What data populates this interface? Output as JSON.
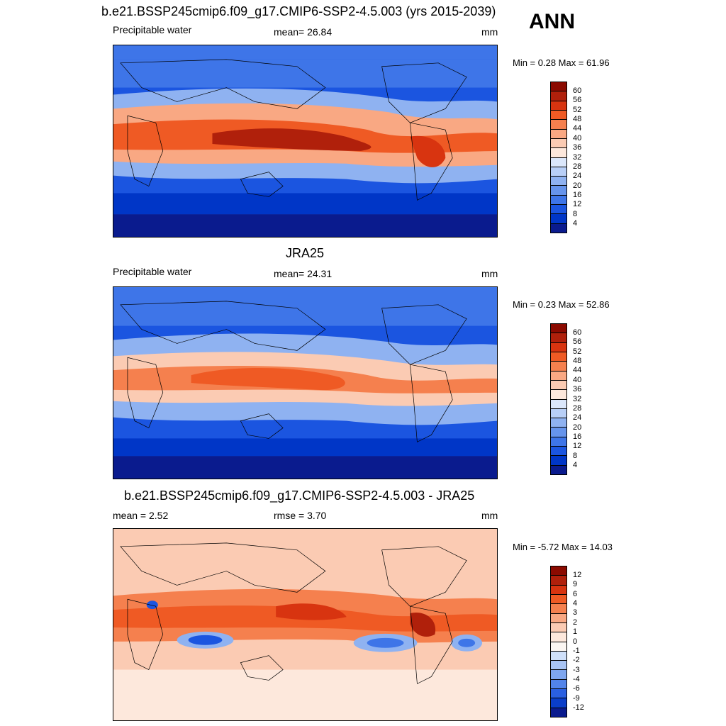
{
  "annual_label": "ANN",
  "panels": [
    {
      "title": "b.e21.BSSP245cmip6.f09_g17.CMIP6-SSP2-4.5.003 (yrs 2015-2039)",
      "variable": "Precipitable water",
      "stat": "mean=  26.84",
      "units": "mm",
      "minmax": "Min =   0.28 Max =  61.96",
      "ticks": [
        "60",
        "56",
        "52",
        "48",
        "44",
        "40",
        "36",
        "32",
        "28",
        "24",
        "20",
        "16",
        "12",
        "8",
        "4"
      ],
      "colors": [
        "#8b0a00",
        "#b0200b",
        "#d83410",
        "#ef5a24",
        "#f5804e",
        "#f9a883",
        "#fbcbb3",
        "#fde8dc",
        "#dbe7fb",
        "#b8cff7",
        "#8fb2f1",
        "#6694ec",
        "#3e75e8",
        "#1b55e0",
        "#0036c7",
        "#0a1b8e"
      ]
    },
    {
      "title": "JRA25",
      "variable": "Precipitable water",
      "stat": "mean=  24.31",
      "units": "mm",
      "minmax": "Min =   0.23 Max =  52.86",
      "ticks": [
        "60",
        "56",
        "52",
        "48",
        "44",
        "40",
        "36",
        "32",
        "28",
        "24",
        "20",
        "16",
        "12",
        "8",
        "4"
      ],
      "colors": [
        "#8b0a00",
        "#b0200b",
        "#d83410",
        "#ef5a24",
        "#f5804e",
        "#f9a883",
        "#fbcbb3",
        "#fde8dc",
        "#dbe7fb",
        "#b8cff7",
        "#8fb2f1",
        "#6694ec",
        "#3e75e8",
        "#1b55e0",
        "#0036c7",
        "#0a1b8e"
      ]
    },
    {
      "title": "b.e21.BSSP245cmip6.f09_g17.CMIP6-SSP2-4.5.003 - JRA25",
      "variable": "mean =   2.52",
      "stat": "rmse =   3.70",
      "units": "mm",
      "minmax": "Min =  -5.72 Max =  14.03",
      "ticks": [
        "12",
        "9",
        "6",
        "4",
        "3",
        "2",
        "1",
        "0",
        "-1",
        "-2",
        "-3",
        "-4",
        "-6",
        "-9",
        "-12"
      ],
      "colors": [
        "#8b0a00",
        "#b0200b",
        "#d83410",
        "#ef5a24",
        "#f5804e",
        "#f9a883",
        "#fbcbb3",
        "#fde8dc",
        "#fbf6f2",
        "#cfe0fa",
        "#a8c4f4",
        "#7ea6ef",
        "#5284ea",
        "#2a60e2",
        "#0a3ec9",
        "#0a1b8e"
      ]
    }
  ]
}
